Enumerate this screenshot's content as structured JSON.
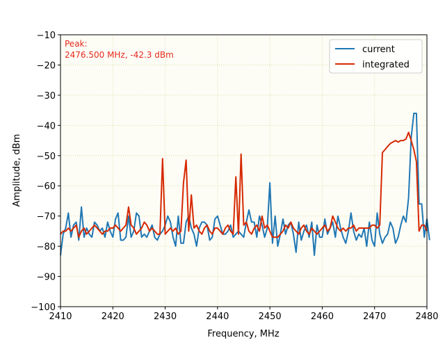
{
  "chart_data": {
    "type": "line",
    "xlabel": "Frequency, MHz",
    "ylabel": "Amplitude, dBm",
    "xlim": [
      2410,
      2480
    ],
    "ylim": [
      -100,
      -10
    ],
    "xticks": [
      2410,
      2420,
      2430,
      2440,
      2450,
      2460,
      2470,
      2480
    ],
    "yticks": [
      -10,
      -20,
      -30,
      -40,
      -50,
      -60,
      -70,
      -80,
      -90,
      -100
    ],
    "grid": true,
    "legend_position": "top-right",
    "annotation": {
      "line1": "Peak:",
      "line2": "2476.500 MHz, -42.3 dBm",
      "color": "#e8291c"
    },
    "x_start": 2410,
    "x_step": 0.5,
    "series": [
      {
        "name": "current",
        "color": "#1f77b4",
        "values": [
          -83,
          -76,
          -74,
          -69,
          -77,
          -73,
          -72,
          -78,
          -67,
          -77,
          -74,
          -76,
          -77,
          -72,
          -73,
          -75,
          -74,
          -77,
          -72,
          -75,
          -77,
          -71,
          -69,
          -78,
          -78,
          -77,
          -70,
          -77,
          -75,
          -69,
          -70,
          -77,
          -76,
          -77,
          -75,
          -73,
          -77,
          -78,
          -76,
          -75,
          -73,
          -70,
          -72,
          -77,
          -80,
          -70,
          -79,
          -79,
          -72,
          -70,
          -74,
          -76,
          -80,
          -74,
          -72,
          -72,
          -73,
          -78,
          -77,
          -71,
          -70,
          -73,
          -76,
          -76,
          -75,
          -73,
          -77,
          -76,
          -75,
          -76,
          -77,
          -72,
          -68,
          -72,
          -72,
          -77,
          -70,
          -73,
          -77,
          -74,
          -59,
          -79,
          -70,
          -80,
          -76,
          -71,
          -76,
          -73,
          -72,
          -76,
          -82,
          -72,
          -78,
          -75,
          -73,
          -77,
          -72,
          -83,
          -73,
          -77,
          -77,
          -71,
          -76,
          -74,
          -72,
          -77,
          -70,
          -74,
          -77,
          -79,
          -75,
          -69,
          -75,
          -78,
          -76,
          -77,
          -74,
          -80,
          -72,
          -78,
          -80,
          -69,
          -76,
          -79,
          -77,
          -76,
          -72,
          -74,
          -79,
          -77,
          -73,
          -70,
          -72,
          -64,
          -44,
          -36,
          -36,
          -66,
          -66,
          -77,
          -71,
          -78
        ]
      },
      {
        "name": "integrated",
        "color": "#d62800",
        "values": [
          -76,
          -75,
          -75,
          -74,
          -75,
          -74,
          -73,
          -77,
          -75,
          -74,
          -76,
          -75,
          -74,
          -73,
          -74,
          -75,
          -76,
          -75,
          -75,
          -74,
          -74,
          -73,
          -74,
          -75,
          -74,
          -73,
          -67,
          -73,
          -74,
          -76,
          -75,
          -74,
          -72,
          -73,
          -75,
          -74,
          -75,
          -76,
          -76,
          -51,
          -76,
          -75,
          -74,
          -75,
          -74,
          -76,
          -75,
          -59,
          -51.5,
          -75,
          -63,
          -74,
          -73,
          -75,
          -76,
          -74,
          -73,
          -75,
          -76,
          -74,
          -74,
          -75,
          -76,
          -74,
          -73,
          -75,
          -76,
          -57,
          -76,
          -49.5,
          -73,
          -72,
          -75,
          -76,
          -74,
          -73,
          -75,
          -70,
          -74,
          -73,
          -75,
          -77,
          -77,
          -77,
          -76,
          -75,
          -73,
          -74,
          -72,
          -74,
          -75,
          -76,
          -74,
          -73,
          -75,
          -76,
          -74,
          -75,
          -76,
          -75,
          -74,
          -73,
          -75,
          -74,
          -70,
          -72,
          -74,
          -75,
          -74,
          -75,
          -74,
          -74,
          -73,
          -75,
          -74,
          -74,
          -74,
          -74,
          -74,
          -73,
          -73,
          -74,
          -73,
          -49,
          -48,
          -47,
          -46,
          -45.5,
          -45,
          -45.5,
          -45,
          -45,
          -44.5,
          -42.3,
          -45,
          -48,
          -52,
          -75,
          -73,
          -73,
          -75
        ]
      }
    ]
  }
}
